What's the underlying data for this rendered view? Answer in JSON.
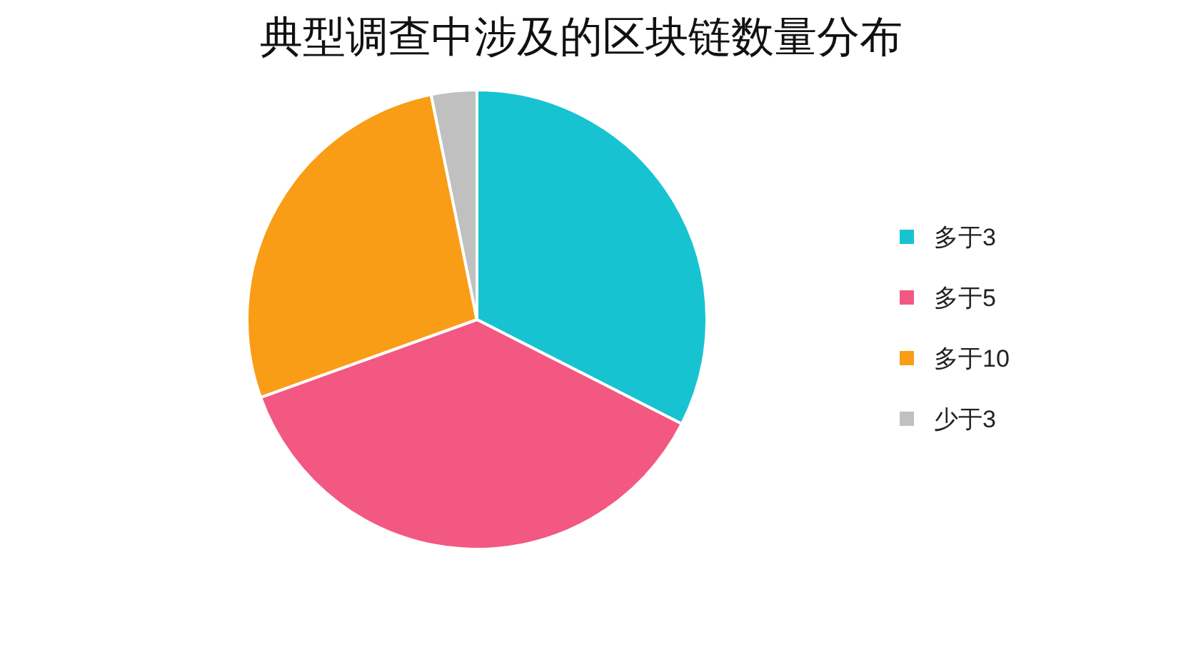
{
  "chart_data": {
    "type": "pie",
    "title": "典型调查中涉及的区块链数量分布",
    "categories": [
      "多于3",
      "多于5",
      "多于10",
      "少于3"
    ],
    "values": [
      32.5,
      37,
      27.3,
      3.2
    ],
    "colors": [
      "#17c3d1",
      "#f25882",
      "#f99d16",
      "#c0c0c0"
    ],
    "legend": "right"
  }
}
